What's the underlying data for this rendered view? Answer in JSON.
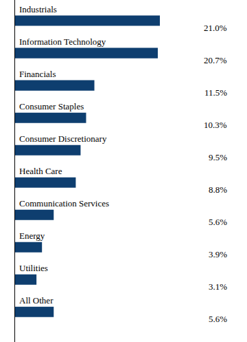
{
  "chart_data": {
    "type": "bar",
    "orientation": "horizontal",
    "categories": [
      "Industrials",
      "Information Technology",
      "Financials",
      "Consumer Staples",
      "Consumer Discretionary",
      "Health Care",
      "Communication Services",
      "Energy",
      "Utilities",
      "All Other"
    ],
    "values": [
      21.0,
      20.7,
      11.5,
      10.3,
      9.5,
      8.8,
      5.6,
      3.9,
      3.1,
      5.6
    ],
    "value_labels": [
      "21.0%",
      "20.7%",
      "11.5%",
      "10.3%",
      "9.5%",
      "8.8%",
      "5.6%",
      "3.9%",
      "3.1%",
      "5.6%"
    ],
    "color": "#0e3e6f",
    "data_labels": true,
    "tick_labels": false
  }
}
